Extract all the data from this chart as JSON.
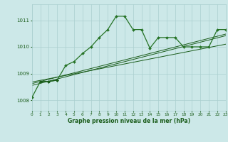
{
  "title": "Graphe pression niveau de la mer (hPa)",
  "bg_color": "#cce8e8",
  "grid_color": "#aacfcf",
  "line_color_dark": "#1a5c1a",
  "line_color_med": "#267326",
  "xlim": [
    0,
    23
  ],
  "ylim": [
    1007.6,
    1011.6
  ],
  "yticks": [
    1008,
    1009,
    1010,
    1011
  ],
  "xticks": [
    0,
    1,
    2,
    3,
    4,
    5,
    6,
    7,
    8,
    9,
    10,
    11,
    12,
    13,
    14,
    15,
    16,
    17,
    18,
    19,
    20,
    21,
    22,
    23
  ],
  "series_main": [
    1008.1,
    1008.7,
    1008.7,
    1008.75,
    1009.3,
    1009.45,
    1009.75,
    1010.0,
    1010.35,
    1010.65,
    1011.15,
    1011.15,
    1010.65,
    1010.65,
    1009.95,
    1010.35,
    1010.35,
    1010.35,
    1010.0,
    1010.0,
    1010.0,
    1010.0,
    1010.65,
    1010.65
  ],
  "series_flat": {
    "x": [
      1,
      2,
      3
    ],
    "y": [
      1008.7,
      1008.7,
      1008.75
    ]
  },
  "trend1_x": [
    0,
    23
  ],
  "trend1_y": [
    1008.55,
    1010.42
  ],
  "trend2_x": [
    0,
    23
  ],
  "trend2_y": [
    1008.62,
    1010.48
  ],
  "trend3_x": [
    0,
    23
  ],
  "trend3_y": [
    1008.68,
    1010.1
  ]
}
